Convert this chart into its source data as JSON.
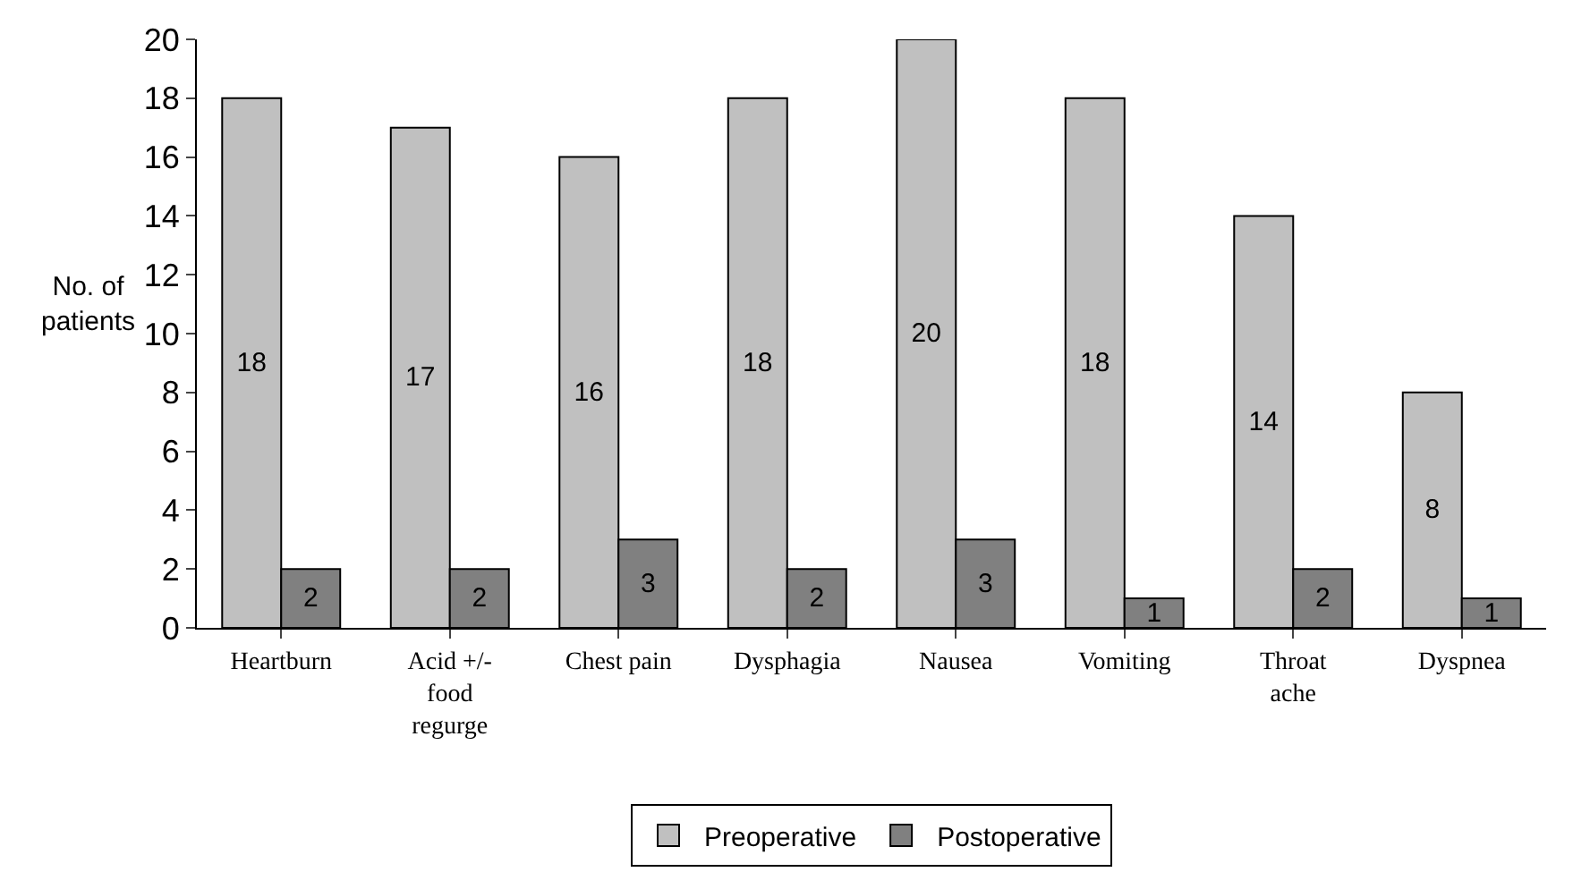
{
  "chart_data": {
    "type": "bar",
    "ylabel": "No. of patients",
    "categories": [
      "Heartburn",
      "Acid +/-\nfood\nregurge",
      "Chest pain",
      "Dysphagia",
      "Nausea",
      "Vomiting",
      "Throat\nache",
      "Dyspnea"
    ],
    "series": [
      {
        "name": "Preoperative",
        "color": "#c0c0c0",
        "values": [
          18,
          17,
          16,
          18,
          20,
          18,
          14,
          8
        ]
      },
      {
        "name": "Postoperative",
        "color": "#808080",
        "values": [
          2,
          2,
          3,
          2,
          3,
          1,
          2,
          1
        ]
      }
    ],
    "ylim": [
      0,
      20
    ],
    "yticks": [
      0,
      2,
      4,
      6,
      8,
      10,
      12,
      14,
      16,
      18,
      20
    ],
    "data_labels": true,
    "grid": false,
    "legend": "bottom"
  }
}
